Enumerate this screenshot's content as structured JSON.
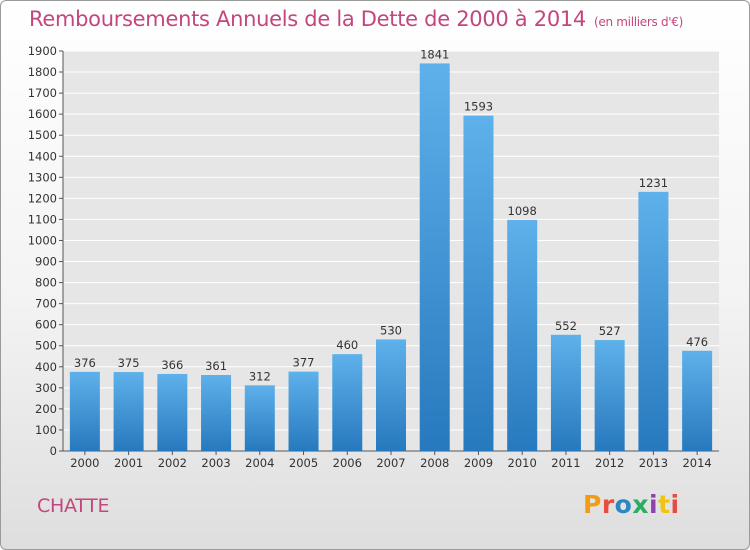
{
  "header": {
    "title": "Remboursements Annuels de la Dette de 2000 à 2014",
    "unit": "(en milliers d'€)"
  },
  "footer": {
    "commune": "CHATTE",
    "logo_text": "Proxiti",
    "logo_colors": [
      "#f39c12",
      "#e74c3c",
      "#2e86c1",
      "#27ae60",
      "#8e44ad",
      "#f1c40f",
      "#e74c3c"
    ]
  },
  "colors": {
    "title": "#c4467e",
    "bar_top": "#5eb1ea",
    "bar_bottom": "#2779be",
    "grid": "#ffffff",
    "plot_bg": "#e6e6e6"
  },
  "chart_data": {
    "type": "bar",
    "title": "Remboursements Annuels de la Dette de 2000 à 2014",
    "subtitle": "(en milliers d'€)",
    "xlabel": "",
    "ylabel": "",
    "categories": [
      "2000",
      "2001",
      "2002",
      "2003",
      "2004",
      "2005",
      "2006",
      "2007",
      "2008",
      "2009",
      "2010",
      "2011",
      "2012",
      "2013",
      "2014"
    ],
    "values": [
      376,
      375,
      366,
      361,
      312,
      377,
      460,
      530,
      1841,
      1593,
      1098,
      552,
      527,
      1231,
      476
    ],
    "ylim": [
      0,
      1900
    ],
    "ytick_step": 100,
    "grid": true,
    "legend": "none"
  }
}
